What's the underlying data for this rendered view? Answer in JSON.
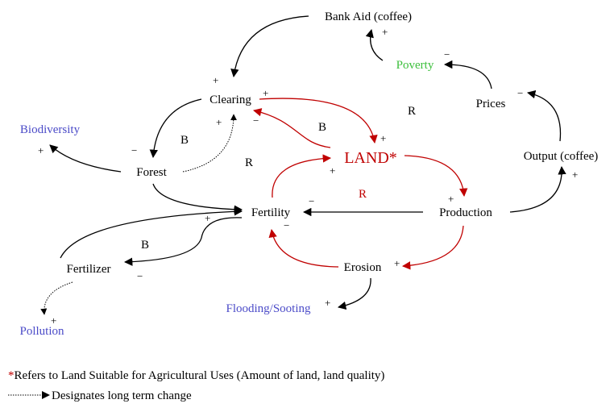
{
  "nodes": [
    {
      "label": "Bank Aid (coffee)"
    },
    {
      "label": "Poverty"
    },
    {
      "label": "Prices"
    },
    {
      "label": "Clearing"
    },
    {
      "label": "Biodiversity"
    },
    {
      "label": "Forest"
    },
    {
      "label": "LAND*"
    },
    {
      "label": "Output (coffee)"
    },
    {
      "label": "Fertility"
    },
    {
      "label": "Production"
    },
    {
      "label": "Fertilizer"
    },
    {
      "label": "Erosion"
    },
    {
      "label": "Flooding/Sooting"
    },
    {
      "label": "Pollution"
    }
  ],
  "signs": [
    "+",
    "−",
    "−",
    "+",
    "+",
    "+",
    "−",
    "+",
    "+",
    "+",
    "+",
    "−",
    "−",
    "+",
    "+",
    "−",
    "+",
    "−",
    "+",
    "+"
  ],
  "loops": [
    "R",
    "B",
    "B",
    "R",
    "R",
    "B"
  ],
  "footnote": {
    "marker": "*",
    "text": "Refers to Land Suitable for Agricultural Uses (Amount of land, land quality)"
  },
  "legend": {
    "text": "Designates long term change"
  }
}
